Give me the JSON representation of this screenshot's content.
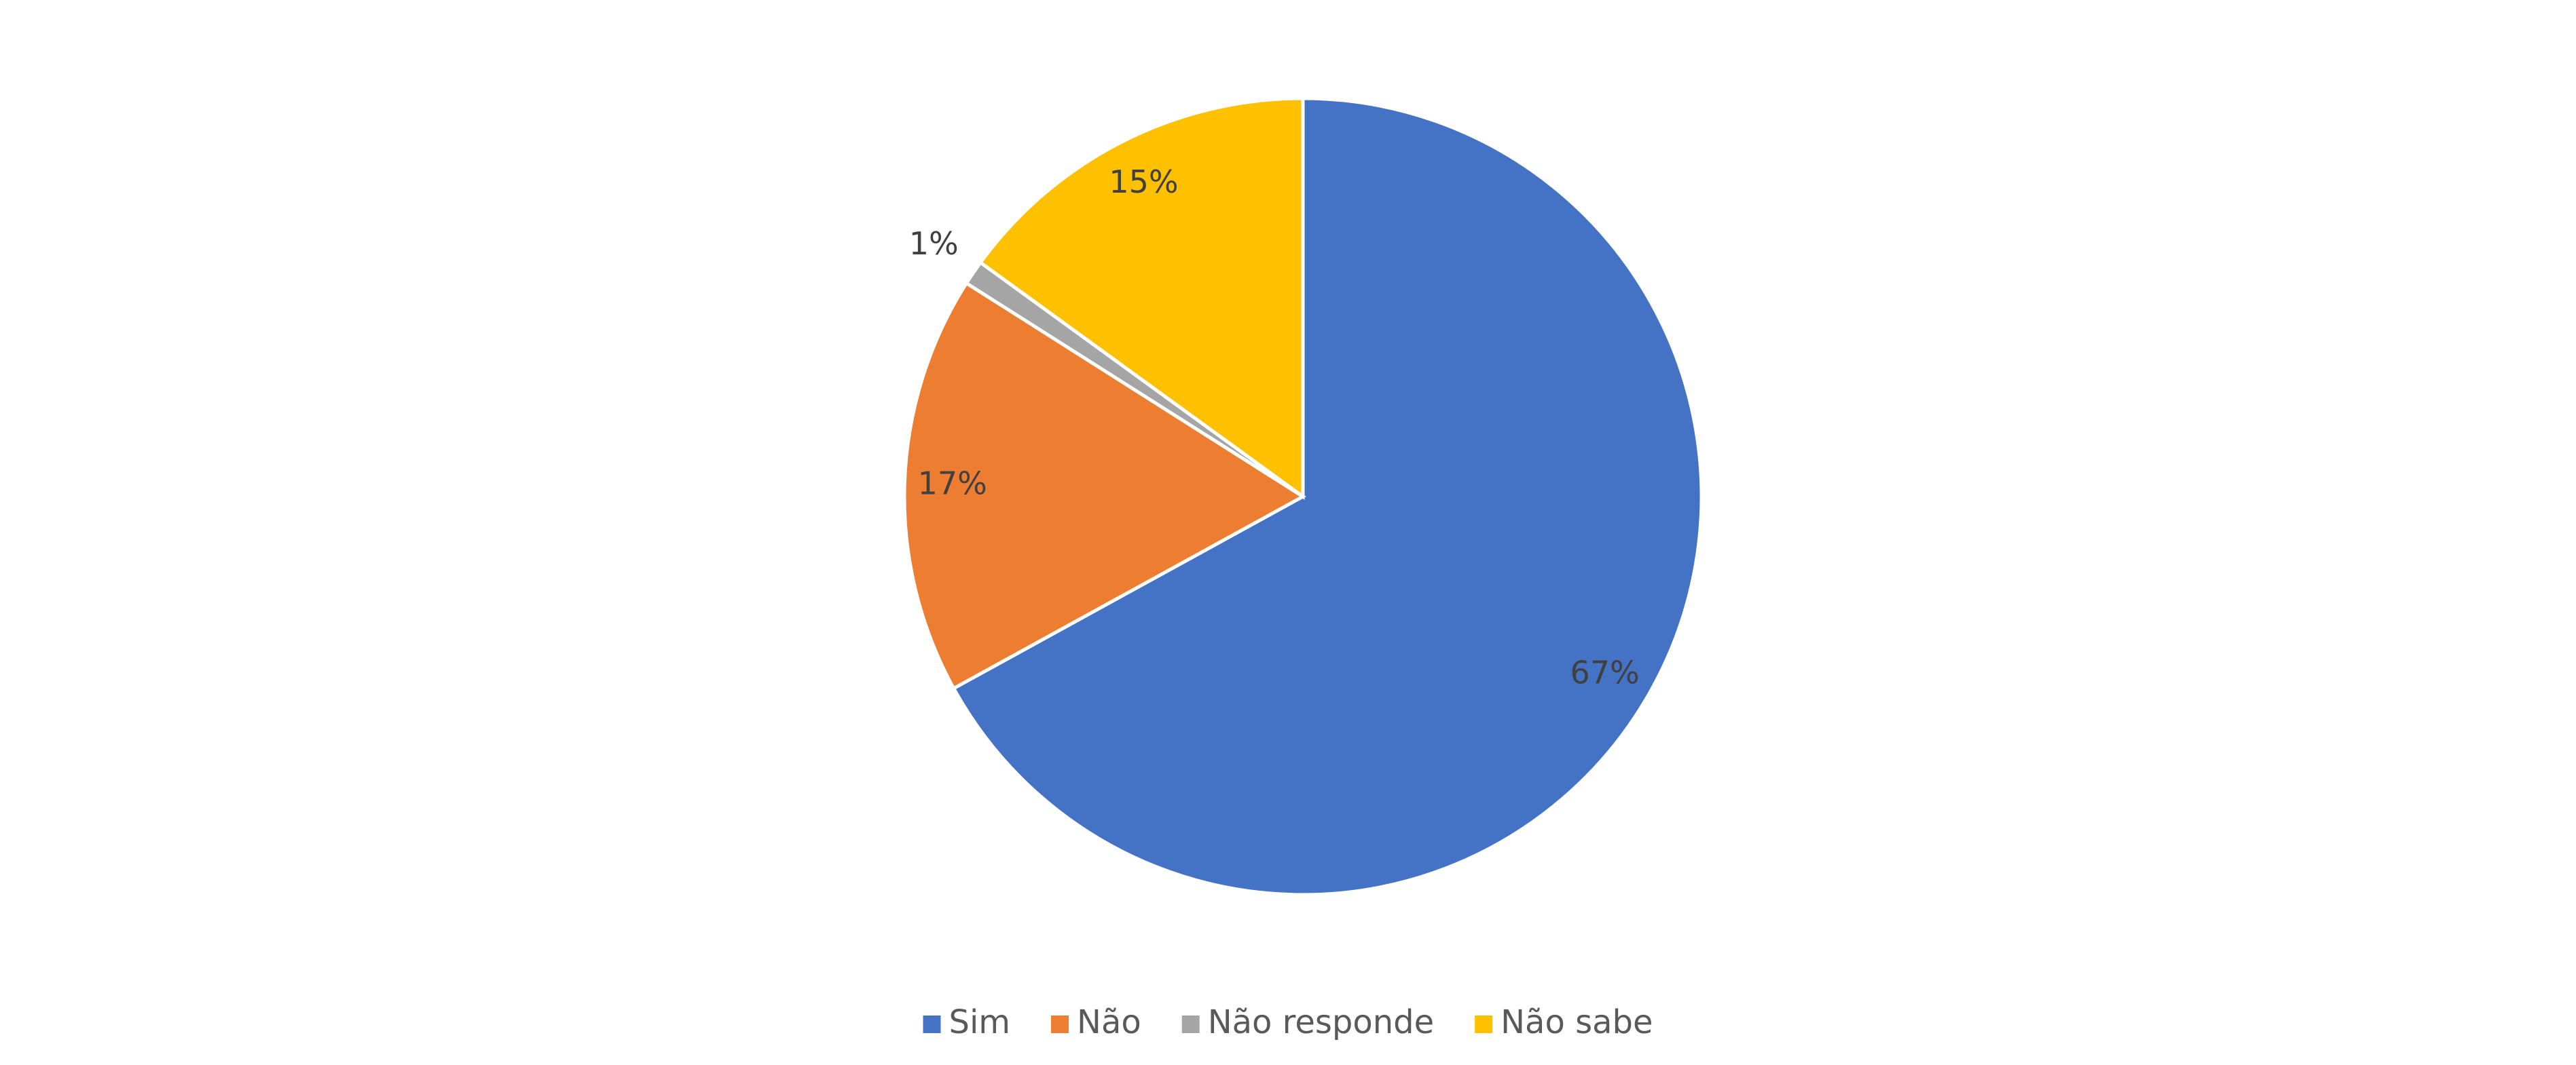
{
  "chart_data": {
    "type": "pie",
    "categories": [
      "Sim",
      "Não",
      "Não responde",
      "Não sabe"
    ],
    "values": [
      67,
      17,
      1,
      15
    ],
    "value_labels": [
      "67%",
      "17%",
      "1%",
      "15%"
    ],
    "colors": [
      "#4472c4",
      "#ed7d31",
      "#a5a5a5",
      "#ffc000"
    ],
    "legend": "bottom"
  }
}
